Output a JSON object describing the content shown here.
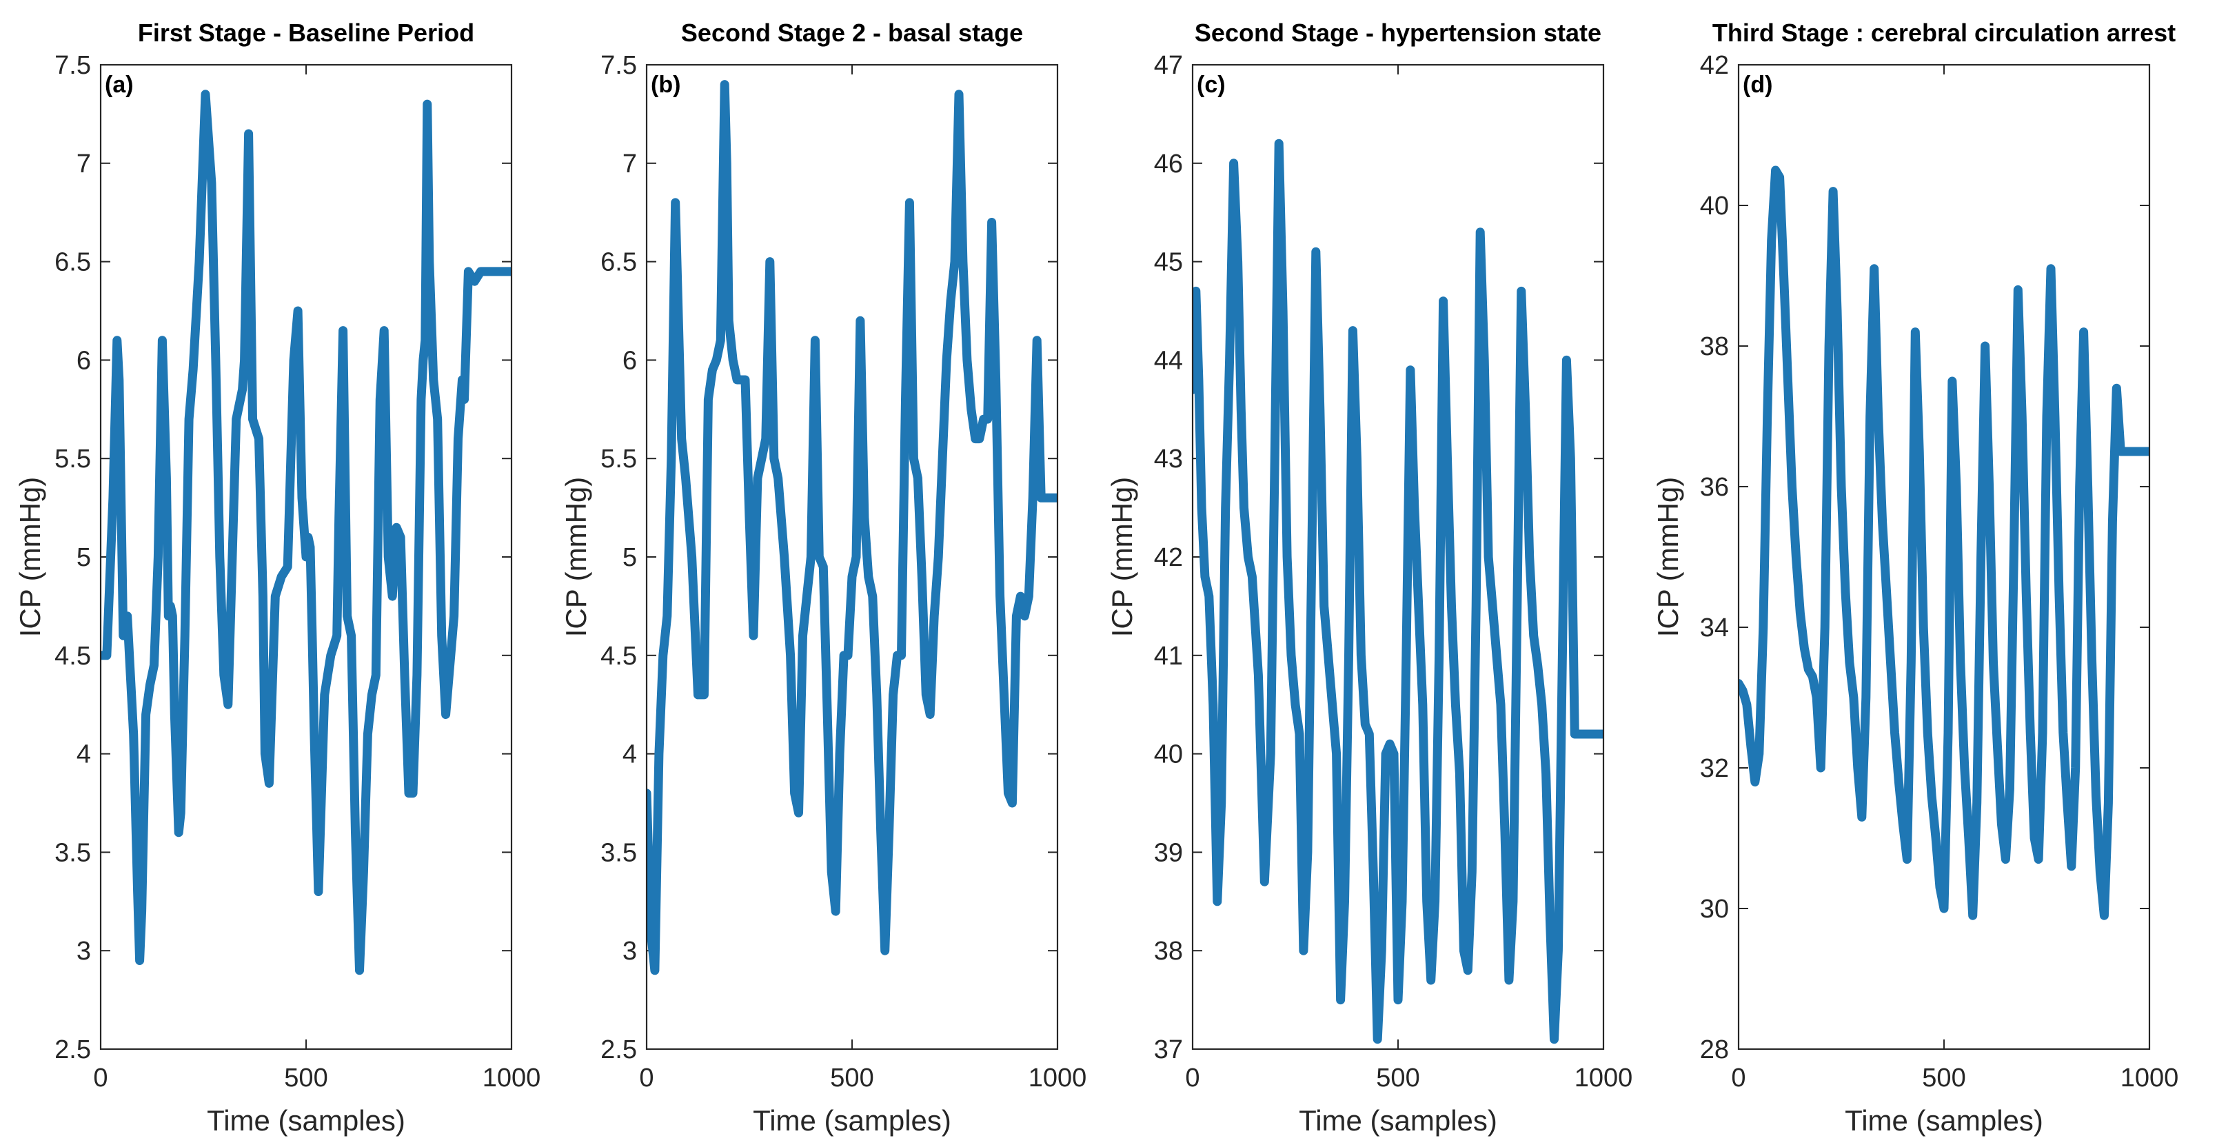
{
  "chart_data": [
    {
      "type": "line",
      "panel_label": "(a)",
      "title": "First Stage  - Baseline Period",
      "xlabel": "Time (samples)",
      "ylabel": "ICP (mmHg)",
      "xlim": [
        0,
        1000
      ],
      "ylim": [
        2.5,
        7.5
      ],
      "xticks": [
        0,
        500,
        1000
      ],
      "yticks": [
        2.5,
        3,
        3.5,
        4,
        4.5,
        5,
        5.5,
        6,
        6.5,
        7,
        7.5
      ],
      "ytick_labels": [
        "2.5",
        "3",
        "3.5",
        "4",
        "4.5",
        "5",
        "5.5",
        "6",
        "6.5",
        "7",
        "7.5"
      ],
      "color": "#1f77b4",
      "series": [
        {
          "name": "ICP",
          "x": [
            0,
            15,
            30,
            40,
            45,
            55,
            60,
            65,
            80,
            90,
            95,
            100,
            110,
            120,
            130,
            140,
            150,
            160,
            165,
            170,
            175,
            180,
            190,
            195,
            205,
            215,
            225,
            240,
            255,
            270,
            280,
            285,
            290,
            300,
            310,
            330,
            345,
            350,
            360,
            370,
            385,
            395,
            400,
            410,
            425,
            440,
            455,
            470,
            480,
            490,
            500,
            505,
            510,
            515,
            520,
            530,
            545,
            560,
            575,
            580,
            590,
            600,
            610,
            620,
            630,
            640,
            650,
            660,
            670,
            680,
            690,
            700,
            710,
            720,
            730,
            740,
            750,
            760,
            770,
            780,
            785,
            790,
            795,
            800,
            810,
            820,
            830,
            840,
            860,
            870,
            880,
            885,
            895,
            910,
            925,
            935,
            945,
            955,
            965,
            975,
            985,
            1000
          ],
          "y": [
            4.5,
            4.5,
            5.3,
            6.1,
            5.9,
            4.6,
            4.7,
            4.7,
            4.1,
            3.3,
            2.95,
            3.2,
            4.2,
            4.35,
            4.45,
            5.0,
            6.1,
            5.4,
            4.7,
            4.75,
            4.7,
            4.2,
            3.6,
            3.7,
            4.6,
            5.7,
            5.95,
            6.5,
            7.35,
            6.9,
            6.0,
            5.5,
            5.0,
            4.4,
            4.25,
            5.7,
            5.85,
            6.0,
            7.15,
            5.7,
            5.6,
            4.8,
            4.0,
            3.85,
            4.8,
            4.9,
            4.95,
            6.0,
            6.25,
            5.3,
            5.0,
            5.1,
            5.05,
            4.6,
            4.1,
            3.3,
            4.3,
            4.5,
            4.6,
            5.2,
            6.15,
            4.7,
            4.6,
            3.6,
            2.9,
            3.4,
            4.1,
            4.3,
            4.4,
            5.8,
            6.15,
            5.0,
            4.8,
            5.15,
            5.1,
            4.4,
            3.8,
            3.8,
            4.4,
            5.8,
            6.0,
            6.1,
            7.3,
            6.5,
            5.9,
            5.7,
            4.6,
            4.2,
            4.7,
            5.6,
            5.9,
            5.8,
            6.45,
            6.4,
            6.45,
            6.45,
            6.45,
            6.45,
            6.45,
            6.45,
            6.45,
            6.45
          ]
        }
      ]
    },
    {
      "type": "line",
      "panel_label": "(b)",
      "title": "Second Stage 2 - basal stage",
      "xlabel": "Time (samples)",
      "ylabel": "ICP (mmHg)",
      "xlim": [
        0,
        1000
      ],
      "ylim": [
        2.5,
        7.5
      ],
      "xticks": [
        0,
        500,
        1000
      ],
      "yticks": [
        2.5,
        3,
        3.5,
        4,
        4.5,
        5,
        5.5,
        6,
        6.5,
        7,
        7.5
      ],
      "ytick_labels": [
        "2.5",
        "3",
        "3.5",
        "4",
        "4.5",
        "5",
        "5.5",
        "6",
        "6.5",
        "7",
        "7.5"
      ],
      "color": "#1f77b4",
      "series": [
        {
          "name": "ICP",
          "x": [
            0,
            10,
            20,
            30,
            40,
            50,
            60,
            70,
            75,
            85,
            95,
            110,
            125,
            140,
            150,
            160,
            170,
            180,
            190,
            195,
            200,
            210,
            220,
            240,
            250,
            260,
            270,
            280,
            290,
            300,
            310,
            320,
            335,
            350,
            360,
            370,
            380,
            390,
            400,
            410,
            420,
            430,
            440,
            450,
            460,
            470,
            480,
            490,
            500,
            510,
            520,
            530,
            540,
            550,
            560,
            570,
            580,
            590,
            600,
            610,
            620,
            630,
            640,
            650,
            660,
            670,
            680,
            690,
            700,
            710,
            720,
            730,
            740,
            750,
            760,
            770,
            780,
            790,
            800,
            810,
            820,
            830,
            840,
            850,
            860,
            870,
            880,
            890,
            900,
            910,
            920,
            930,
            940,
            950,
            960,
            970,
            980,
            990,
            1000
          ],
          "y": [
            3.8,
            3.1,
            2.9,
            4.0,
            4.5,
            4.7,
            5.5,
            6.8,
            6.4,
            5.6,
            5.4,
            5.0,
            4.3,
            4.3,
            5.8,
            5.95,
            6.0,
            6.1,
            7.4,
            7.0,
            6.2,
            6.0,
            5.9,
            5.9,
            5.2,
            4.6,
            5.4,
            5.5,
            5.6,
            6.5,
            5.5,
            5.4,
            5.0,
            4.5,
            3.8,
            3.7,
            4.6,
            4.8,
            5.0,
            6.1,
            5.0,
            4.95,
            4.2,
            3.4,
            3.2,
            4.0,
            4.5,
            4.5,
            4.9,
            5.0,
            6.2,
            5.2,
            4.9,
            4.8,
            4.3,
            3.6,
            3.0,
            3.6,
            4.3,
            4.5,
            4.5,
            5.8,
            6.8,
            5.5,
            5.4,
            4.9,
            4.3,
            4.2,
            4.7,
            5.0,
            5.5,
            6.0,
            6.3,
            6.5,
            7.35,
            6.5,
            6.0,
            5.75,
            5.6,
            5.6,
            5.7,
            5.7,
            6.7,
            5.9,
            4.8,
            4.3,
            3.8,
            3.75,
            4.7,
            4.8,
            4.7,
            4.8,
            5.3,
            6.1,
            5.3,
            5.3,
            5.3,
            5.3,
            5.3
          ]
        }
      ]
    },
    {
      "type": "line",
      "panel_label": "(c)",
      "title": "Second Stage - hypertension state",
      "xlabel": "Time (samples)",
      "ylabel": "ICP (mmHg)",
      "xlim": [
        0,
        1000
      ],
      "ylim": [
        37,
        47
      ],
      "xticks": [
        0,
        500,
        1000
      ],
      "yticks": [
        37,
        38,
        39,
        40,
        41,
        42,
        43,
        44,
        45,
        46,
        47
      ],
      "ytick_labels": [
        "37",
        "38",
        "39",
        "40",
        "41",
        "42",
        "43",
        "44",
        "45",
        "46",
        "47"
      ],
      "color": "#1f77b4",
      "series": [
        {
          "name": "ICP",
          "x": [
            0,
            8,
            15,
            22,
            30,
            40,
            50,
            60,
            70,
            80,
            90,
            100,
            110,
            118,
            125,
            135,
            145,
            160,
            175,
            190,
            200,
            210,
            220,
            230,
            240,
            250,
            260,
            270,
            280,
            290,
            300,
            310,
            320,
            330,
            340,
            350,
            360,
            370,
            380,
            390,
            400,
            410,
            420,
            430,
            440,
            450,
            460,
            470,
            480,
            490,
            500,
            510,
            520,
            530,
            540,
            550,
            560,
            570,
            580,
            590,
            600,
            610,
            620,
            630,
            640,
            650,
            660,
            670,
            680,
            690,
            700,
            710,
            720,
            730,
            740,
            750,
            760,
            770,
            780,
            790,
            800,
            810,
            820,
            830,
            840,
            850,
            860,
            870,
            880,
            890,
            900,
            910,
            920,
            930,
            940,
            950,
            960,
            970,
            980,
            990,
            1000
          ],
          "y": [
            43.7,
            44.7,
            43.8,
            42.5,
            41.8,
            41.6,
            40.5,
            38.5,
            39.5,
            42.5,
            44.0,
            46.0,
            45.0,
            43.5,
            42.5,
            42.0,
            41.8,
            40.8,
            38.7,
            40.0,
            43.0,
            46.2,
            44.5,
            42.0,
            41.0,
            40.5,
            40.2,
            38.0,
            39.0,
            42.0,
            45.1,
            43.5,
            41.5,
            41.0,
            40.5,
            40.0,
            37.5,
            38.5,
            41.0,
            44.3,
            43.0,
            41.0,
            40.3,
            40.2,
            38.8,
            37.1,
            38.0,
            40.0,
            40.1,
            40.0,
            37.5,
            38.5,
            41.0,
            43.9,
            42.5,
            41.5,
            40.5,
            38.5,
            37.7,
            38.5,
            41.0,
            44.6,
            43.0,
            41.5,
            40.5,
            39.8,
            38.0,
            37.8,
            38.8,
            41.5,
            45.3,
            44.0,
            42.0,
            41.5,
            41.0,
            40.5,
            39.2,
            37.7,
            38.5,
            41.5,
            44.7,
            43.5,
            42.0,
            41.2,
            40.9,
            40.5,
            39.8,
            38.3,
            37.1,
            38.0,
            41.0,
            44.0,
            43.0,
            40.2,
            40.2,
            40.2,
            40.2,
            40.2,
            40.2,
            40.2,
            40.2
          ]
        }
      ]
    },
    {
      "type": "line",
      "panel_label": "(d)",
      "title": "Third Stage : cerebral circulation arrest",
      "xlabel": "Time (samples)",
      "ylabel": "ICP (mmHg)",
      "xlim": [
        0,
        1000
      ],
      "ylim": [
        28,
        42
      ],
      "xticks": [
        0,
        500,
        1000
      ],
      "yticks": [
        28,
        30,
        32,
        34,
        36,
        38,
        40,
        42
      ],
      "ytick_labels": [
        "28",
        "30",
        "32",
        "34",
        "36",
        "38",
        "40",
        "42"
      ],
      "color": "#1f77b4",
      "series": [
        {
          "name": "ICP",
          "x": [
            0,
            10,
            20,
            30,
            40,
            50,
            60,
            70,
            80,
            90,
            100,
            110,
            120,
            130,
            140,
            150,
            160,
            170,
            180,
            190,
            200,
            210,
            220,
            230,
            240,
            250,
            260,
            270,
            280,
            290,
            300,
            310,
            320,
            330,
            340,
            350,
            360,
            370,
            380,
            390,
            400,
            410,
            420,
            430,
            440,
            450,
            460,
            470,
            480,
            490,
            500,
            510,
            520,
            530,
            540,
            550,
            560,
            570,
            580,
            590,
            600,
            610,
            620,
            630,
            640,
            650,
            660,
            670,
            680,
            690,
            700,
            710,
            720,
            730,
            740,
            750,
            760,
            770,
            780,
            790,
            800,
            810,
            820,
            830,
            840,
            850,
            860,
            870,
            880,
            890,
            900,
            910,
            920,
            930,
            940,
            950,
            960,
            970,
            980,
            990,
            1000
          ],
          "y": [
            33.2,
            33.1,
            32.9,
            32.3,
            31.8,
            32.2,
            34.0,
            37.0,
            39.5,
            40.5,
            40.4,
            39.0,
            37.5,
            36.0,
            35.0,
            34.2,
            33.7,
            33.4,
            33.3,
            33.0,
            32.0,
            34.0,
            38.0,
            40.2,
            38.5,
            36.0,
            34.5,
            33.5,
            33.0,
            32.0,
            31.3,
            33.0,
            37.0,
            39.1,
            37.0,
            35.5,
            34.5,
            33.5,
            32.5,
            31.8,
            31.2,
            30.7,
            33.5,
            38.2,
            36.5,
            34.0,
            32.5,
            31.6,
            31.0,
            30.3,
            30.0,
            32.5,
            37.5,
            36.0,
            33.5,
            32.0,
            31.0,
            29.9,
            31.5,
            35.0,
            38.0,
            36.0,
            33.5,
            32.3,
            31.2,
            30.7,
            31.7,
            35.0,
            38.8,
            37.0,
            34.5,
            32.5,
            31.0,
            30.7,
            32.5,
            37.0,
            39.1,
            37.0,
            34.5,
            32.5,
            31.5,
            30.6,
            32.0,
            36.0,
            38.2,
            36.0,
            33.5,
            31.6,
            30.5,
            29.9,
            31.5,
            35.5,
            37.4,
            36.5,
            36.5,
            36.5,
            36.5,
            36.5,
            36.5,
            36.5,
            36.5
          ]
        }
      ]
    }
  ]
}
